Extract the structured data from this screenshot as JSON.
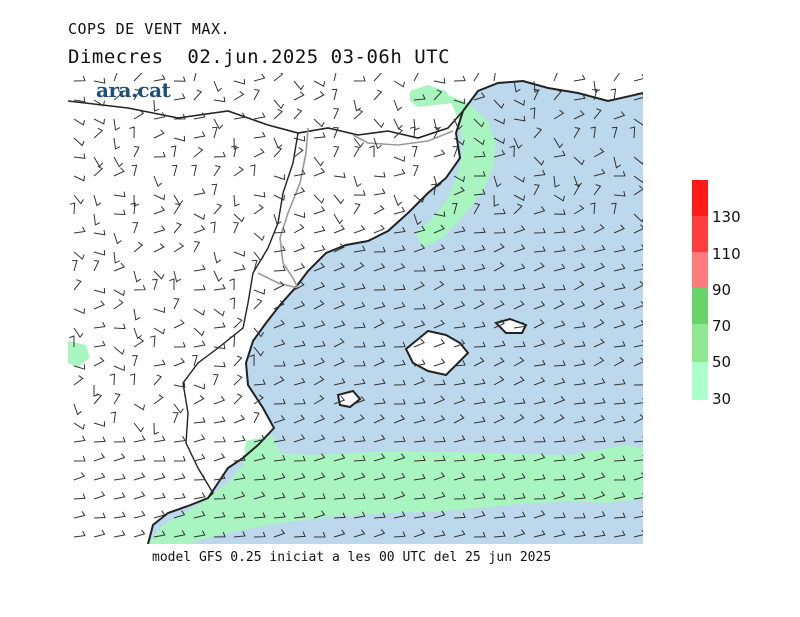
{
  "title_line1": "COPS DE VENT MAX.",
  "title_line2": "Dimecres  02.jun.2025 03-06h UTC",
  "watermark": "ara.cat",
  "footer": "model GFS 0.25 iniciat a les 00 UTC del 25 jun 2025",
  "legend": {
    "labels": [
      "130",
      "110",
      "90",
      "70",
      "50",
      "30"
    ],
    "colors": [
      "#ff1a1a",
      "#ff3d3d",
      "#ff7a7a",
      "#6ad46a",
      "#8fe88f",
      "#aaffcc"
    ]
  },
  "map_colors": {
    "sea": "#bcd8ec",
    "land": "#ffffff",
    "wind_30_50": "#a8f5c0",
    "coast": "#333333",
    "border": "#999999",
    "barb": "#333333"
  }
}
